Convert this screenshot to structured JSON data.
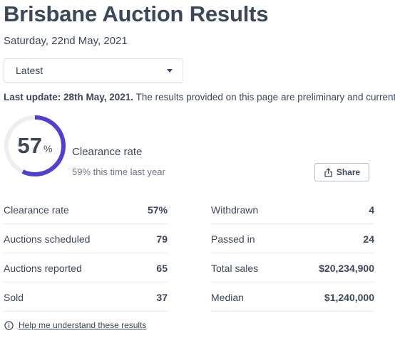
{
  "header": {
    "title": "Brisbane Auction Results",
    "date": "Saturday, 22nd May, 2021"
  },
  "filter": {
    "selected": "Latest"
  },
  "update": {
    "bold": "Last update: 28th May, 2021.",
    "text": " The results provided on this page are preliminary and current"
  },
  "clearance": {
    "value": "57",
    "unit": "%",
    "fraction": 0.57,
    "label": "Clearance rate",
    "last_year": "59% this time last year",
    "colors": {
      "ring": "#4f3fd7",
      "track": "#eceef1"
    }
  },
  "share": {
    "label": "Share"
  },
  "stats": {
    "left": [
      {
        "label": "Clearance rate",
        "value": "57%"
      },
      {
        "label": "Auctions scheduled",
        "value": "79"
      },
      {
        "label": "Auctions reported",
        "value": "65"
      },
      {
        "label": "Sold",
        "value": "37"
      }
    ],
    "right": [
      {
        "label": "Withdrawn",
        "value": "4"
      },
      {
        "label": "Passed in",
        "value": "24"
      },
      {
        "label": "Total sales",
        "value": "$20,234,900"
      },
      {
        "label": "Median",
        "value": "$1,240,000"
      }
    ]
  },
  "help": {
    "label": "Help me understand these results",
    "icon": "info-icon"
  }
}
